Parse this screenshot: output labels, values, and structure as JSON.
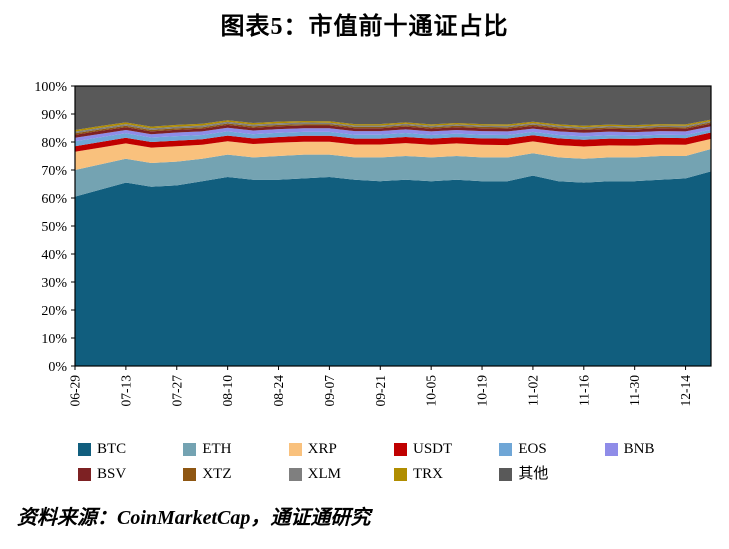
{
  "title": "图表5：市值前十通证占比",
  "source": "资料来源：CoinMarketCap，通证通研究",
  "chart_data": {
    "type": "area",
    "stacked": true,
    "unit": "%",
    "title": "图表5：市值前十通证占比",
    "ylim": [
      0,
      100
    ],
    "y_ticks": [
      "0%",
      "10%",
      "20%",
      "30%",
      "40%",
      "50%",
      "60%",
      "70%",
      "80%",
      "90%",
      "100%"
    ],
    "grid": false,
    "legend_position": "bottom",
    "x": [
      "06-29",
      "07-06",
      "07-13",
      "07-20",
      "07-27",
      "08-03",
      "08-10",
      "08-17",
      "08-24",
      "08-31",
      "09-07",
      "09-14",
      "09-21",
      "09-28",
      "10-05",
      "10-12",
      "10-19",
      "10-26",
      "11-02",
      "11-09",
      "11-16",
      "11-23",
      "11-30",
      "12-07",
      "12-14",
      "12-21"
    ],
    "x_tick_labels": [
      "06-29",
      "07-13",
      "07-27",
      "08-10",
      "08-24",
      "09-07",
      "09-21",
      "10-05",
      "10-19",
      "11-02",
      "11-16",
      "11-30",
      "12-14"
    ],
    "x_tick_indices": [
      0,
      2,
      4,
      6,
      8,
      10,
      12,
      14,
      16,
      18,
      20,
      22,
      24
    ],
    "series": [
      {
        "name": "BTC",
        "color": "#115e7e",
        "values": [
          60.5,
          63.0,
          65.5,
          64.0,
          64.5,
          66.0,
          67.5,
          66.5,
          66.5,
          67.0,
          67.5,
          66.5,
          66.0,
          66.5,
          66.0,
          66.5,
          66.0,
          66.0,
          68.0,
          66.0,
          65.5,
          66.0,
          66.0,
          66.5,
          67.0,
          69.5
        ]
      },
      {
        "name": "ETH",
        "color": "#74a3b2",
        "values": [
          9.5,
          9.0,
          8.5,
          8.5,
          8.5,
          8.0,
          8.0,
          8.0,
          8.5,
          8.5,
          8.0,
          8.0,
          8.5,
          8.5,
          8.5,
          8.5,
          8.5,
          8.5,
          8.0,
          8.5,
          8.5,
          8.5,
          8.5,
          8.5,
          8.0,
          8.0
        ]
      },
      {
        "name": "XRP",
        "color": "#f9c17d",
        "values": [
          6.5,
          6.0,
          5.5,
          5.5,
          5.5,
          5.0,
          4.8,
          4.8,
          4.8,
          4.6,
          4.6,
          4.6,
          4.6,
          4.6,
          4.5,
          4.5,
          4.5,
          4.4,
          4.2,
          4.4,
          4.4,
          4.3,
          4.2,
          4.1,
          4.0,
          3.6
        ]
      },
      {
        "name": "USDT",
        "color": "#c00000",
        "values": [
          2.0,
          2.0,
          2.0,
          2.0,
          2.0,
          2.0,
          2.0,
          2.0,
          2.0,
          2.1,
          2.1,
          2.1,
          2.1,
          2.2,
          2.2,
          2.2,
          2.3,
          2.3,
          2.2,
          2.4,
          2.4,
          2.4,
          2.4,
          2.4,
          2.4,
          2.3
        ]
      },
      {
        "name": "EOS",
        "color": "#6fa6d6",
        "values": [
          1.8,
          1.7,
          1.6,
          1.6,
          1.6,
          1.5,
          1.5,
          1.5,
          1.5,
          1.4,
          1.4,
          1.4,
          1.4,
          1.4,
          1.3,
          1.3,
          1.3,
          1.3,
          1.2,
          1.2,
          1.2,
          1.2,
          1.1,
          1.1,
          1.1,
          1.0
        ]
      },
      {
        "name": "BNB",
        "color": "#8f8ce8",
        "values": [
          1.2,
          1.2,
          1.2,
          1.2,
          1.3,
          1.3,
          1.3,
          1.3,
          1.3,
          1.3,
          1.3,
          1.3,
          1.3,
          1.3,
          1.3,
          1.3,
          1.3,
          1.3,
          1.2,
          1.3,
          1.3,
          1.3,
          1.3,
          1.3,
          1.3,
          1.2
        ]
      },
      {
        "name": "BSV",
        "color": "#7d2123",
        "values": [
          1.1,
          1.1,
          1.0,
          1.0,
          1.0,
          1.0,
          1.0,
          1.0,
          1.0,
          1.0,
          1.0,
          1.0,
          1.0,
          1.0,
          1.0,
          1.0,
          1.0,
          1.0,
          0.9,
          1.0,
          1.0,
          1.0,
          1.0,
          1.0,
          1.0,
          0.9
        ]
      },
      {
        "name": "XTZ",
        "color": "#8e5612",
        "values": [
          0.5,
          0.5,
          0.5,
          0.5,
          0.5,
          0.5,
          0.5,
          0.5,
          0.5,
          0.5,
          0.5,
          0.5,
          0.5,
          0.5,
          0.5,
          0.5,
          0.5,
          0.5,
          0.5,
          0.5,
          0.5,
          0.5,
          0.5,
          0.5,
          0.5,
          0.5
        ]
      },
      {
        "name": "XLM",
        "color": "#7f7f7f",
        "values": [
          0.6,
          0.6,
          0.6,
          0.6,
          0.6,
          0.6,
          0.6,
          0.6,
          0.6,
          0.6,
          0.5,
          0.5,
          0.5,
          0.5,
          0.5,
          0.5,
          0.5,
          0.5,
          0.5,
          0.5,
          0.5,
          0.5,
          0.5,
          0.5,
          0.5,
          0.5
        ]
      },
      {
        "name": "TRX",
        "color": "#b08d00",
        "values": [
          0.6,
          0.6,
          0.6,
          0.6,
          0.6,
          0.6,
          0.6,
          0.6,
          0.6,
          0.5,
          0.5,
          0.5,
          0.5,
          0.5,
          0.5,
          0.5,
          0.5,
          0.5,
          0.5,
          0.5,
          0.5,
          0.5,
          0.5,
          0.5,
          0.5,
          0.5
        ]
      },
      {
        "name": "其他",
        "color": "#595959",
        "values": [
          15.7,
          14.3,
          13.0,
          14.5,
          13.9,
          13.5,
          12.2,
          13.2,
          12.7,
          12.5,
          12.6,
          13.6,
          13.6,
          13.0,
          13.7,
          13.2,
          13.6,
          13.7,
          12.8,
          13.7,
          14.2,
          13.8,
          14.0,
          13.6,
          13.7,
          12.0
        ]
      }
    ]
  }
}
